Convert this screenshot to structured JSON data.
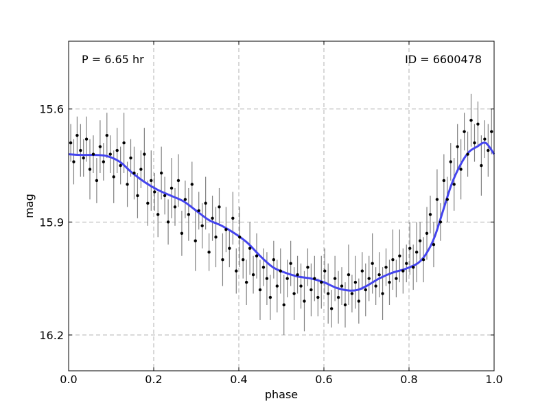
{
  "chart_data": {
    "type": "scatter",
    "xlabel": "phase",
    "ylabel": "mag",
    "xlim": [
      0.0,
      1.0
    ],
    "ylim": [
      16.295,
      15.42
    ],
    "y_inverted": true,
    "grid": true,
    "xticks": [
      0.0,
      0.2,
      0.4,
      0.6,
      0.8,
      1.0
    ],
    "xtick_labels": [
      "0.0",
      "0.2",
      "0.4",
      "0.6",
      "0.8",
      "1.0"
    ],
    "yticks": [
      15.6,
      15.9,
      16.2
    ],
    "ytick_labels": [
      "15.6",
      "15.9",
      "16.2"
    ],
    "annotations": {
      "period": "P = 6.65 hr",
      "id": "ID = 6600478"
    },
    "colors": {
      "points": "#000000",
      "errorbars": "#808080",
      "fit": "#4444ee",
      "grid": "#b0b0b0"
    },
    "fit_curve": {
      "x": [
        0.0,
        0.03,
        0.06,
        0.09,
        0.12,
        0.15,
        0.18,
        0.21,
        0.24,
        0.27,
        0.3,
        0.33,
        0.36,
        0.39,
        0.42,
        0.45,
        0.48,
        0.51,
        0.54,
        0.57,
        0.6,
        0.63,
        0.66,
        0.68,
        0.7,
        0.73,
        0.76,
        0.79,
        0.82,
        0.84,
        0.86,
        0.88,
        0.9,
        0.92,
        0.94,
        0.96,
        0.98,
        1.0
      ],
      "y": [
        15.72,
        15.722,
        15.722,
        15.725,
        15.74,
        15.77,
        15.795,
        15.815,
        15.83,
        15.845,
        15.87,
        15.895,
        15.91,
        15.93,
        15.955,
        15.99,
        16.02,
        16.035,
        16.045,
        16.05,
        16.06,
        16.075,
        16.082,
        16.08,
        16.07,
        16.05,
        16.035,
        16.025,
        16.01,
        15.985,
        15.94,
        15.87,
        15.8,
        15.75,
        15.715,
        15.7,
        15.69,
        15.72
      ]
    },
    "points": {
      "x": [
        0.005,
        0.012,
        0.02,
        0.028,
        0.035,
        0.042,
        0.05,
        0.058,
        0.066,
        0.074,
        0.082,
        0.09,
        0.098,
        0.106,
        0.114,
        0.122,
        0.13,
        0.138,
        0.146,
        0.154,
        0.162,
        0.17,
        0.178,
        0.186,
        0.194,
        0.202,
        0.21,
        0.218,
        0.226,
        0.234,
        0.242,
        0.25,
        0.258,
        0.266,
        0.274,
        0.282,
        0.29,
        0.298,
        0.306,
        0.314,
        0.322,
        0.33,
        0.338,
        0.346,
        0.354,
        0.362,
        0.37,
        0.378,
        0.386,
        0.394,
        0.402,
        0.41,
        0.418,
        0.426,
        0.434,
        0.442,
        0.45,
        0.458,
        0.466,
        0.474,
        0.482,
        0.49,
        0.498,
        0.506,
        0.514,
        0.522,
        0.53,
        0.538,
        0.546,
        0.554,
        0.562,
        0.57,
        0.578,
        0.586,
        0.594,
        0.602,
        0.61,
        0.618,
        0.626,
        0.634,
        0.642,
        0.65,
        0.658,
        0.666,
        0.674,
        0.682,
        0.69,
        0.698,
        0.706,
        0.714,
        0.722,
        0.73,
        0.738,
        0.746,
        0.754,
        0.762,
        0.77,
        0.778,
        0.786,
        0.794,
        0.802,
        0.81,
        0.818,
        0.826,
        0.834,
        0.842,
        0.85,
        0.858,
        0.866,
        0.874,
        0.882,
        0.89,
        0.898,
        0.906,
        0.914,
        0.922,
        0.93,
        0.938,
        0.946,
        0.954,
        0.962,
        0.97,
        0.978,
        0.986,
        0.994
      ],
      "y": [
        15.69,
        15.74,
        15.67,
        15.71,
        15.73,
        15.68,
        15.76,
        15.72,
        15.79,
        15.7,
        15.74,
        15.67,
        15.72,
        15.78,
        15.71,
        15.75,
        15.69,
        15.8,
        15.73,
        15.77,
        15.83,
        15.76,
        15.72,
        15.85,
        15.79,
        15.82,
        15.88,
        15.77,
        15.83,
        15.9,
        15.81,
        15.86,
        15.79,
        15.93,
        15.84,
        15.88,
        15.8,
        15.95,
        15.87,
        15.91,
        15.85,
        15.98,
        15.89,
        15.94,
        15.86,
        16.0,
        15.92,
        15.97,
        15.89,
        16.03,
        15.94,
        16.0,
        16.06,
        15.97,
        16.04,
        15.99,
        16.08,
        16.02,
        16.05,
        16.1,
        16.0,
        16.07,
        16.03,
        16.12,
        16.05,
        16.01,
        16.09,
        16.04,
        16.07,
        16.11,
        16.02,
        16.08,
        16.05,
        16.1,
        16.06,
        16.03,
        16.09,
        16.13,
        16.05,
        16.1,
        16.07,
        16.12,
        16.04,
        16.09,
        16.06,
        16.11,
        16.03,
        16.08,
        16.05,
        16.01,
        16.07,
        16.04,
        16.09,
        16.02,
        16.06,
        16.0,
        16.05,
        15.99,
        16.03,
        16.01,
        15.97,
        16.02,
        15.98,
        15.95,
        16.0,
        15.93,
        15.88,
        15.96,
        15.84,
        15.9,
        15.79,
        15.84,
        15.74,
        15.8,
        15.7,
        15.76,
        15.66,
        15.72,
        15.63,
        15.69,
        15.64,
        15.75,
        15.68,
        15.71,
        15.66
      ],
      "err": [
        0.05,
        0.06,
        0.05,
        0.07,
        0.05,
        0.06,
        0.08,
        0.05,
        0.06,
        0.07,
        0.05,
        0.06,
        0.05,
        0.07,
        0.06,
        0.05,
        0.08,
        0.06,
        0.05,
        0.07,
        0.06,
        0.05,
        0.07,
        0.06,
        0.08,
        0.05,
        0.06,
        0.07,
        0.05,
        0.06,
        0.08,
        0.05,
        0.07,
        0.06,
        0.05,
        0.07,
        0.06,
        0.08,
        0.05,
        0.06,
        0.07,
        0.05,
        0.06,
        0.08,
        0.05,
        0.07,
        0.06,
        0.05,
        0.07,
        0.06,
        0.08,
        0.05,
        0.06,
        0.07,
        0.05,
        0.06,
        0.08,
        0.05,
        0.07,
        0.06,
        0.05,
        0.07,
        0.06,
        0.08,
        0.05,
        0.06,
        0.07,
        0.05,
        0.06,
        0.08,
        0.05,
        0.07,
        0.06,
        0.05,
        0.07,
        0.06,
        0.08,
        0.05,
        0.06,
        0.07,
        0.05,
        0.06,
        0.08,
        0.05,
        0.07,
        0.06,
        0.05,
        0.07,
        0.06,
        0.08,
        0.05,
        0.06,
        0.07,
        0.05,
        0.06,
        0.08,
        0.05,
        0.07,
        0.06,
        0.05,
        0.07,
        0.06,
        0.08,
        0.05,
        0.06,
        0.07,
        0.05,
        0.06,
        0.08,
        0.05,
        0.07,
        0.06,
        0.05,
        0.07,
        0.06,
        0.08,
        0.05,
        0.06,
        0.07,
        0.05,
        0.06,
        0.08,
        0.05,
        0.07,
        0.06
      ]
    }
  }
}
